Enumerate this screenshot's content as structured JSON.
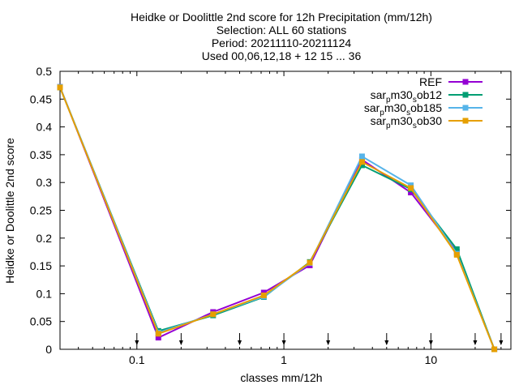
{
  "chart_data": {
    "type": "line",
    "title_lines": [
      "Heidke or Doolittle 2nd score  for 12h Precipitation (mm/12h)",
      "Selection: ALL     60 stations",
      "Period: 20211110-20211124",
      "Used 00,06,12,18 + 12 15 ... 36"
    ],
    "xlabel": "classes mm/12h",
    "ylabel": "Heidke or Doolittle 2nd score",
    "x_scale": "log",
    "xlim": [
      0.03,
      35
    ],
    "ylim": [
      0,
      0.5
    ],
    "x_ticks": [
      {
        "value": 0.1,
        "label": "0.1"
      },
      {
        "value": 1,
        "label": "1"
      },
      {
        "value": 10,
        "label": "10"
      }
    ],
    "y_ticks": [
      {
        "value": 0,
        "label": "0"
      },
      {
        "value": 0.05,
        "label": "0.05"
      },
      {
        "value": 0.1,
        "label": "0.1"
      },
      {
        "value": 0.15,
        "label": "0.15"
      },
      {
        "value": 0.2,
        "label": "0.2"
      },
      {
        "value": 0.25,
        "label": "0.25"
      },
      {
        "value": 0.3,
        "label": "0.3"
      },
      {
        "value": 0.35,
        "label": "0.35"
      },
      {
        "value": 0.4,
        "label": "0.4"
      },
      {
        "value": 0.45,
        "label": "0.45"
      },
      {
        "value": 0.5,
        "label": "0.5"
      }
    ],
    "threshold_markers": [
      0.1,
      0.2,
      0.5,
      1,
      2,
      5,
      10,
      20,
      30
    ],
    "grid": false,
    "legend_position": "top-right",
    "x": [
      0.03,
      0.14,
      0.33,
      0.73,
      1.5,
      3.4,
      7.3,
      15,
      27
    ],
    "series": [
      {
        "name": "REF",
        "label_parts": [
          [
            "REF",
            ""
          ]
        ],
        "color": "#9400d3",
        "values": [
          0.472,
          0.021,
          0.067,
          0.102,
          0.151,
          0.341,
          0.282,
          0.175,
          0.0
        ]
      },
      {
        "name": "sar_pm30_sob12",
        "label_parts": [
          [
            "sar",
            ""
          ],
          [
            "p",
            "sub"
          ],
          [
            "m30",
            ""
          ],
          [
            "s",
            "sub"
          ],
          [
            "ob12",
            ""
          ]
        ],
        "color": "#009e73",
        "values": [
          0.471,
          0.033,
          0.061,
          0.094,
          0.157,
          0.331,
          0.288,
          0.18,
          0.0
        ]
      },
      {
        "name": "sar_pm30_sob185",
        "label_parts": [
          [
            "sar",
            ""
          ],
          [
            "p",
            "sub"
          ],
          [
            "m30",
            ""
          ],
          [
            "s",
            "sub"
          ],
          [
            "ob185",
            ""
          ]
        ],
        "color": "#56b4e9",
        "values": [
          0.472,
          0.03,
          0.063,
          0.095,
          0.155,
          0.347,
          0.295,
          0.172,
          0.0
        ]
      },
      {
        "name": "sar_pm30_sob30",
        "label_parts": [
          [
            "sar",
            ""
          ],
          [
            "p",
            "sub"
          ],
          [
            "m30",
            ""
          ],
          [
            "s",
            "sub"
          ],
          [
            "ob30",
            ""
          ]
        ],
        "color": "#e69f00",
        "values": [
          0.471,
          0.028,
          0.063,
          0.097,
          0.156,
          0.337,
          0.29,
          0.17,
          0.0
        ]
      }
    ]
  }
}
